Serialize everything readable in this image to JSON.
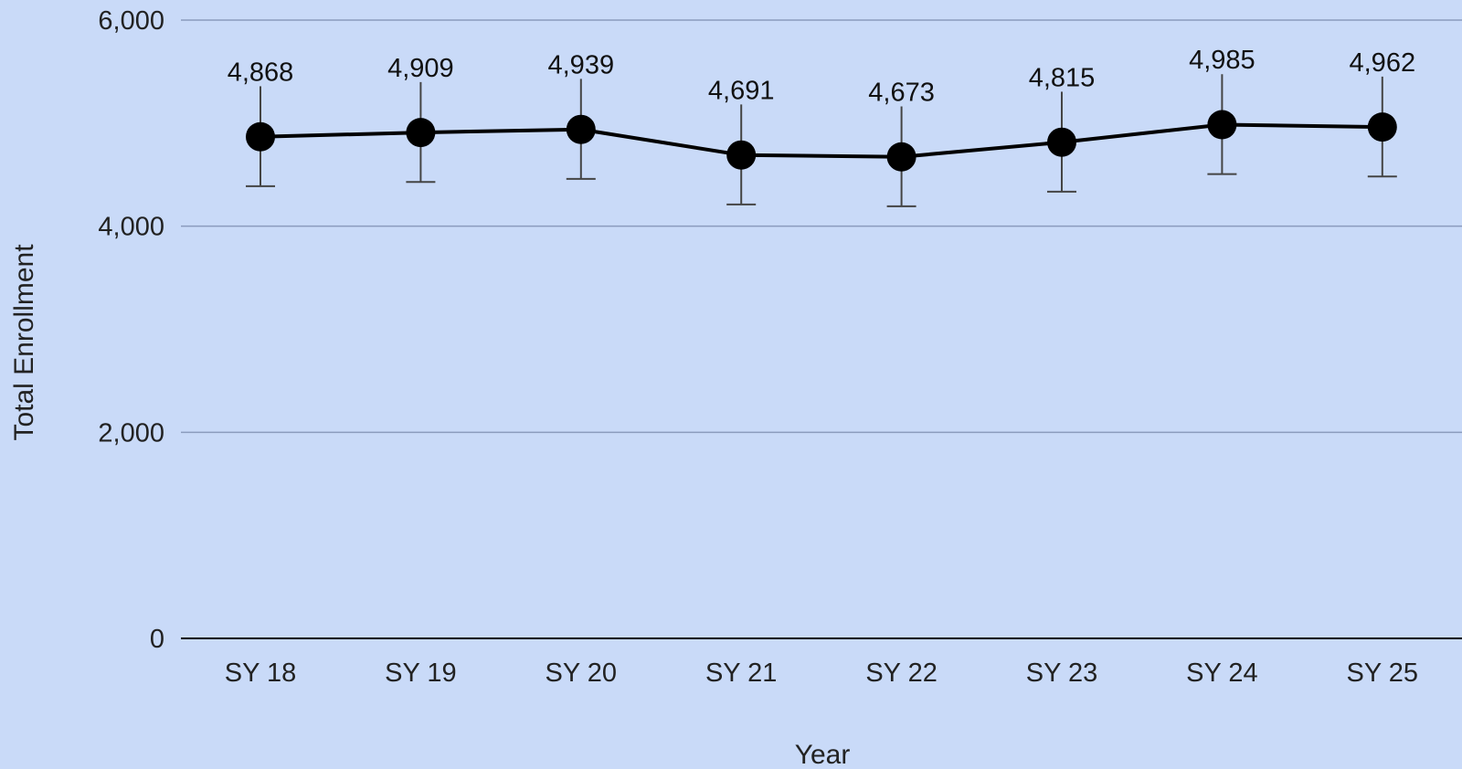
{
  "chart_data": {
    "type": "line",
    "title": "",
    "xlabel": "Year",
    "ylabel": "Total Enrollment",
    "categories": [
      "SY 18",
      "SY 19",
      "SY 20",
      "SY 21",
      "SY 22",
      "SY 23",
      "SY 24",
      "SY 25"
    ],
    "series": [
      {
        "values": [
          4868,
          4909,
          4939,
          4691,
          4673,
          4815,
          4985,
          4962
        ],
        "labels": [
          "4,868",
          "4,909",
          "4,939",
          "4,691",
          "4,673",
          "4,815",
          "4,985",
          "4,962"
        ],
        "error_bars": {
          "plus": 490,
          "minus": 480
        },
        "color": "#000000"
      }
    ],
    "ylim": [
      0,
      6000
    ],
    "yticks": [
      0,
      2000,
      4000,
      6000
    ],
    "ytick_labels": [
      "0",
      "2,000",
      "4,000",
      "6,000"
    ],
    "grid": true,
    "legend": "none",
    "colors": {
      "background": "#c9daf8",
      "grid": "#8a9bbd",
      "axis": "#000000",
      "error_bar": "#444444"
    }
  }
}
